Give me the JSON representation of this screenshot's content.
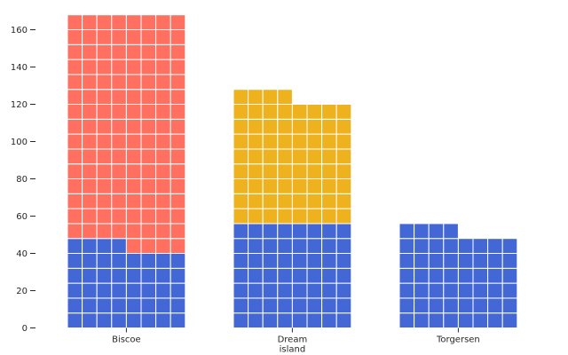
{
  "chart_data": {
    "type": "bar",
    "subtype": "waffle-stacked",
    "title": "",
    "xlabel": "",
    "ylabel": "",
    "ylim": [
      0,
      170
    ],
    "y_ticks": [
      0,
      20,
      40,
      60,
      80,
      100,
      120,
      140,
      160
    ],
    "grid": false,
    "legend": "none",
    "units_per_cell": 1,
    "cells_per_row": 8,
    "categories": [
      {
        "label": [
          "Biscoe"
        ]
      },
      {
        "label": [
          "Dream",
          "island"
        ]
      },
      {
        "label": [
          "Torgersen"
        ]
      }
    ],
    "series": [
      {
        "color": "#4367d4",
        "values": [
          44,
          56,
          52
        ]
      },
      {
        "color": "#ff7060",
        "values": [
          124,
          0,
          0
        ]
      },
      {
        "color": "#eeb21e",
        "values": [
          0,
          68,
          0
        ]
      }
    ]
  }
}
